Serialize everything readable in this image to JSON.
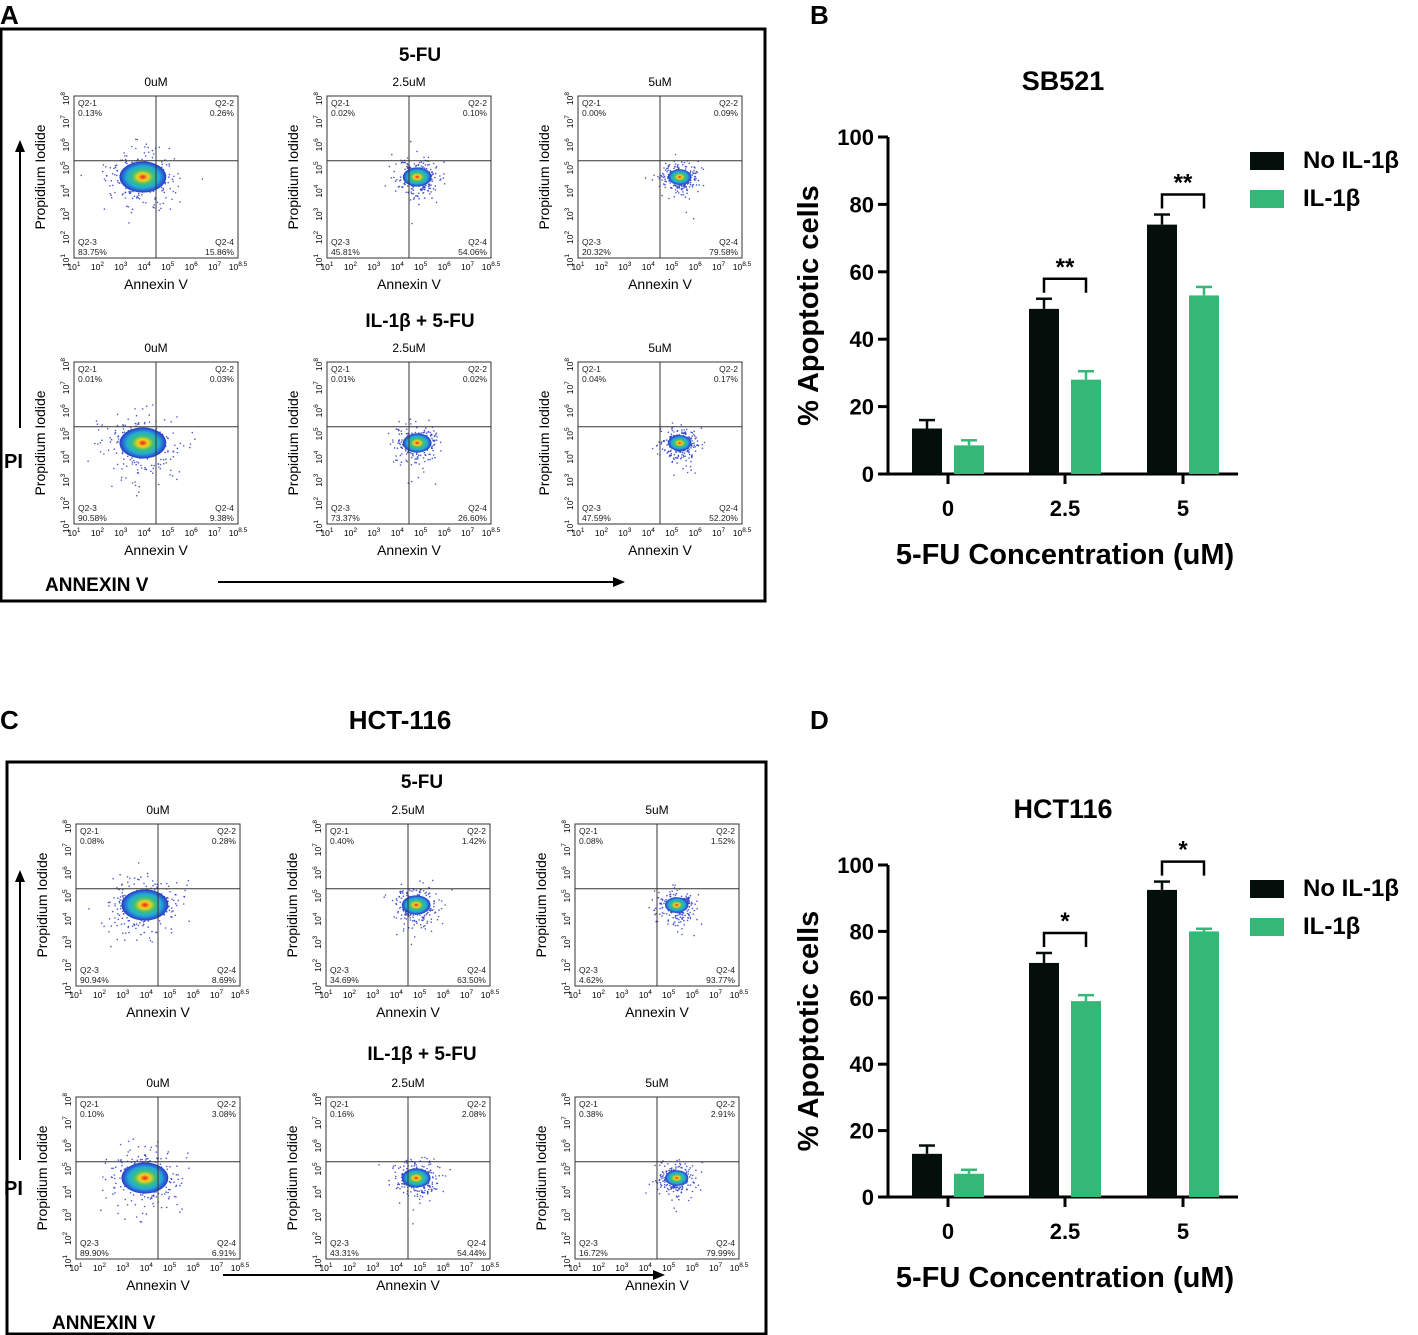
{
  "panel_letters": {
    "A": "A",
    "B": "B",
    "C": "C",
    "D": "D"
  },
  "colors": {
    "no_il1b": "#040f0b",
    "il1b": "#35b877",
    "frame": "#000000",
    "quad_line": "#444444"
  },
  "flow_panels": [
    {
      "letter": "A",
      "cell_line": "",
      "rows": [
        {
          "title": "5-FU",
          "plots": [
            {
              "dose": "0uM",
              "q": [
                "0.13%",
                "0.26%",
                "83.75%",
                "15.86%"
              ]
            },
            {
              "dose": "2.5uM",
              "q": [
                "0.02%",
                "0.10%",
                "45.81%",
                "54.06%"
              ]
            },
            {
              "dose": "5uM",
              "q": [
                "0.00%",
                "0.09%",
                "20.32%",
                "79.58%"
              ]
            }
          ]
        },
        {
          "title": "IL-1β + 5-FU",
          "plots": [
            {
              "dose": "0uM",
              "q": [
                "0.01%",
                "0.03%",
                "90.58%",
                "9.38%"
              ]
            },
            {
              "dose": "2.5uM",
              "q": [
                "0.01%",
                "0.02%",
                "73.37%",
                "26.60%"
              ]
            },
            {
              "dose": "5uM",
              "q": [
                "0.04%",
                "0.17%",
                "47.59%",
                "52.20%"
              ]
            }
          ]
        }
      ]
    },
    {
      "letter": "C",
      "cell_line": "HCT-116",
      "rows": [
        {
          "title": "5-FU",
          "plots": [
            {
              "dose": "0uM",
              "q": [
                "0.08%",
                "0.28%",
                "90.94%",
                "8.69%"
              ]
            },
            {
              "dose": "2.5uM",
              "q": [
                "0.40%",
                "1.42%",
                "34.69%",
                "63.50%"
              ]
            },
            {
              "dose": "5uM",
              "q": [
                "0.08%",
                "1.52%",
                "4.62%",
                "93.77%"
              ]
            }
          ]
        },
        {
          "title": "IL-1β + 5-FU",
          "plots": [
            {
              "dose": "0uM",
              "q": [
                "0.10%",
                "3.08%",
                "89.90%",
                "6.91%"
              ]
            },
            {
              "dose": "2.5uM",
              "q": [
                "0.16%",
                "2.08%",
                "43.31%",
                "54.44%"
              ]
            },
            {
              "dose": "5uM",
              "q": [
                "0.38%",
                "2.91%",
                "16.72%",
                "79.99%"
              ]
            }
          ]
        }
      ]
    }
  ],
  "flow_common": {
    "x_axis_label": "Annexin V",
    "y_axis_label": "Propidium Iodide",
    "quadrant_names": [
      "Q2-1",
      "Q2-2",
      "Q2-3",
      "Q2-4"
    ],
    "x_ticks": [
      "10",
      "10",
      "10",
      "10",
      "10",
      "10",
      "10",
      "10"
    ],
    "x_tick_exps": [
      "1",
      "2",
      "3",
      "4",
      "5",
      "6",
      "7",
      "8.5"
    ],
    "y_ticks": [
      "10",
      "10",
      "10",
      "10",
      "10",
      "10",
      "10",
      "10"
    ],
    "y_tick_exps": [
      "1",
      "2",
      "3",
      "4",
      "5",
      "6",
      "7",
      "8"
    ],
    "big_y": "PI",
    "big_x": "ANNEXIN V"
  },
  "chart_data": [
    {
      "type": "bar",
      "panel": "B",
      "title": "SB521",
      "categories": [
        "0",
        "2.5",
        "5"
      ],
      "series": [
        {
          "name": "No IL-1β",
          "values": [
            13.5,
            49,
            74
          ],
          "errors": [
            2.5,
            3,
            3
          ]
        },
        {
          "name": "IL-1β",
          "values": [
            8.5,
            28,
            53
          ],
          "errors": [
            1.5,
            2.5,
            2.5
          ]
        }
      ],
      "significance": [
        "",
        "**",
        "**"
      ],
      "xlabel": "5-FU Concentration (uM)",
      "ylabel": "% Apoptotic cells",
      "ylim": [
        0,
        100
      ],
      "yticks": [
        "0",
        "20",
        "40",
        "60",
        "80",
        "100"
      ],
      "legend": "top-right",
      "grid": false
    },
    {
      "type": "bar",
      "panel": "D",
      "title": "HCT116",
      "categories": [
        "0",
        "2.5",
        "5"
      ],
      "series": [
        {
          "name": "No IL-1β",
          "values": [
            13,
            70.5,
            92.5
          ],
          "errors": [
            2.5,
            3,
            2.5
          ]
        },
        {
          "name": "IL-1β",
          "values": [
            7,
            59,
            80
          ],
          "errors": [
            1.2,
            1.8,
            0.8
          ]
        }
      ],
      "significance": [
        "",
        "*",
        "*"
      ],
      "xlabel": "5-FU Concentration (uM)",
      "ylabel": "% Apoptotic cells",
      "ylim": [
        0,
        100
      ],
      "yticks": [
        "0",
        "20",
        "40",
        "60",
        "80",
        "100"
      ],
      "legend": "top-right",
      "grid": false
    }
  ]
}
